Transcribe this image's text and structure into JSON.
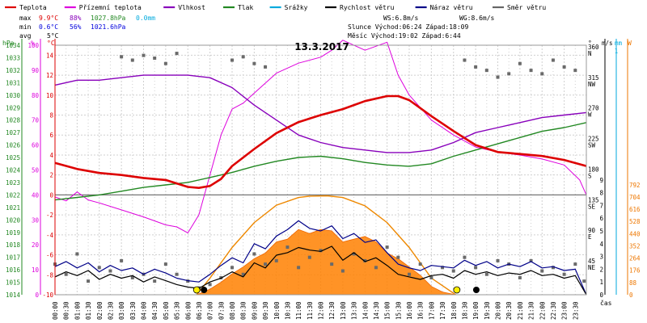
{
  "chart_data": {
    "type": "line",
    "title": "13.3.2017",
    "xlabel": "čas",
    "x_ticks": [
      "00:00",
      "00:30",
      "01:00",
      "01:30",
      "02:00",
      "02:30",
      "03:00",
      "03:30",
      "04:00",
      "04:30",
      "05:00",
      "05:30",
      "06:00",
      "06:30",
      "07:00",
      "07:30",
      "08:00",
      "08:30",
      "09:00",
      "09:30",
      "10:00",
      "10:30",
      "11:00",
      "11:30",
      "12:00",
      "12:30",
      "13:00",
      "13:30",
      "14:00",
      "14:30",
      "15:00",
      "15:30",
      "16:00",
      "16:30",
      "17:00",
      "17:30",
      "18:00",
      "18:30",
      "19:00",
      "19:30",
      "20:00",
      "20:30",
      "21:00",
      "21:30",
      "22:00",
      "22:30",
      "23:00",
      "23:30"
    ],
    "legend": [
      {
        "name": "Teplota",
        "color": "#dd0000"
      },
      {
        "name": "Přízemní teplota",
        "color": "#dd00dd"
      },
      {
        "name": "Vlhkost",
        "color": "#8800bb"
      },
      {
        "name": "Tlak",
        "color": "#228822"
      },
      {
        "name": "Srážky",
        "color": "#00aadd"
      },
      {
        "name": "Rychlost větru",
        "color": "#000000"
      },
      {
        "name": "Náraz větru",
        "color": "#000088"
      },
      {
        "name": "Směr větru",
        "color": "#666666"
      }
    ],
    "stats": {
      "max": {
        "label": "max",
        "temp": "9.9°C",
        "hum": "88%",
        "press": "1027.8hPa",
        "rain": "0.0mm"
      },
      "min": {
        "label": "min",
        "temp": "0.6°C",
        "hum": "56%",
        "press": "1021.6hPa"
      },
      "avg": {
        "label": "avg",
        "temp": "5°C"
      }
    },
    "info": {
      "ws": "WS:6.8m/s",
      "wg": "WG:8.6m/s",
      "sun": "Slunce Východ:06:24  Západ:18:09",
      "moon": "Měsíc  Východ:19:02  Západ:6:44"
    },
    "axes": {
      "hpa": {
        "label": "hPa",
        "min": 1014,
        "max": 1034,
        "ticks": [
          1014,
          1015,
          1016,
          1017,
          1018,
          1019,
          1020,
          1021,
          1022,
          1023,
          1024,
          1025,
          1026,
          1027,
          1028,
          1029,
          1030,
          1031,
          1032,
          1033,
          1034
        ]
      },
      "percent": {
        "label": "%",
        "min": 0,
        "max": 100,
        "ticks": [
          0,
          10,
          20,
          30,
          40,
          50,
          60,
          70,
          80,
          90,
          100
        ]
      },
      "celsius": {
        "label": "°C",
        "min": -10,
        "max": 15,
        "ticks": [
          -10,
          -8,
          -6,
          -4,
          -2,
          0,
          2,
          4,
          6,
          8,
          10,
          12,
          14
        ]
      },
      "direction": {
        "label": "°",
        "ticks": [
          {
            "v": 360,
            "dir": "N"
          },
          {
            "v": 315,
            "dir": "NW"
          },
          {
            "v": 270,
            "dir": "W"
          },
          {
            "v": 225,
            "dir": "SW"
          },
          {
            "v": 180,
            "dir": "S"
          },
          {
            "v": 135,
            "dir": "SE"
          },
          {
            "v": 90,
            "dir": "E"
          },
          {
            "v": 45,
            "dir": "NE"
          }
        ]
      },
      "ms": {
        "label": "m/s",
        "min": 0,
        "max": 9,
        "ticks": [
          0,
          1,
          2,
          3,
          4,
          5,
          6,
          7,
          8,
          9
        ]
      },
      "mm": {
        "label": "mm",
        "top_value": "1"
      },
      "watt": {
        "label": "W",
        "min": 0,
        "max": 792,
        "ticks": [
          0,
          88,
          176,
          264,
          352,
          440,
          528,
          616,
          704,
          792
        ]
      }
    },
    "series": [
      {
        "name": "Teplota",
        "axis": "celsius",
        "color": "#dd0000",
        "x": [
          0,
          1,
          2,
          3,
          4,
          5,
          6,
          6.5,
          7,
          7.5,
          8,
          9,
          10,
          11,
          12,
          13,
          14,
          15,
          15.5,
          16,
          17,
          18,
          19,
          20,
          21,
          22,
          23,
          24
        ],
        "y": [
          3.2,
          2.6,
          2.2,
          2.0,
          1.7,
          1.5,
          0.8,
          0.7,
          0.9,
          1.6,
          2.9,
          4.6,
          6.2,
          7.3,
          8.0,
          8.6,
          9.4,
          9.9,
          9.9,
          9.5,
          7.9,
          6.4,
          5.0,
          4.3,
          4.1,
          3.9,
          3.5,
          2.9
        ]
      },
      {
        "name": "Přízemní teplota",
        "axis": "celsius",
        "color": "#dd00dd",
        "x": [
          0,
          0.5,
          1,
          1.5,
          2,
          3,
          4,
          5,
          5.5,
          6,
          6.5,
          7,
          7.5,
          8,
          8.5,
          9,
          10,
          11,
          12,
          12.5,
          13,
          14,
          15,
          15.5,
          16,
          17,
          18,
          19,
          20,
          21,
          22,
          23,
          23.7,
          24
        ],
        "y": [
          -0.2,
          -0.6,
          0.3,
          -0.5,
          -0.8,
          -1.5,
          -2.2,
          -3.0,
          -3.2,
          -3.8,
          -2.0,
          2.0,
          6.0,
          8.6,
          9.2,
          10.2,
          12.2,
          13.2,
          13.8,
          14.5,
          15.5,
          14.5,
          15.3,
          12.0,
          10.0,
          7.5,
          6.0,
          4.8,
          4.3,
          4.0,
          3.6,
          3.0,
          1.5,
          0.0
        ]
      },
      {
        "name": "Vlhkost",
        "axis": "percent",
        "color": "#8800bb",
        "x": [
          0,
          1,
          2,
          3,
          4,
          5,
          6,
          7,
          8,
          9,
          10,
          11,
          12,
          13,
          14,
          15,
          16,
          17,
          18,
          19,
          20,
          21,
          22,
          23,
          24
        ],
        "y": [
          84,
          86,
          86,
          87,
          88,
          88,
          88,
          87,
          83,
          76,
          70,
          64,
          61,
          59,
          58,
          57,
          57,
          58,
          61,
          65,
          67,
          69,
          71,
          72,
          73
        ]
      },
      {
        "name": "Tlak",
        "axis": "hpa",
        "color": "#228822",
        "x": [
          0,
          1,
          2,
          3,
          4,
          5,
          6,
          7,
          8,
          9,
          10,
          11,
          12,
          13,
          14,
          15,
          16,
          17,
          18,
          19,
          20,
          21,
          22,
          23,
          24
        ],
        "y": [
          1021.6,
          1021.8,
          1022.0,
          1022.3,
          1022.6,
          1022.8,
          1023.0,
          1023.4,
          1023.8,
          1024.3,
          1024.7,
          1025.0,
          1025.1,
          1024.9,
          1024.6,
          1024.4,
          1024.3,
          1024.5,
          1025.1,
          1025.6,
          1026.1,
          1026.6,
          1027.1,
          1027.4,
          1027.8
        ]
      },
      {
        "name": "Rychlost větru",
        "axis": "ms",
        "color": "#000000",
        "x": [
          0,
          0.5,
          1,
          1.5,
          2,
          2.5,
          3,
          3.5,
          4,
          4.5,
          5,
          5.5,
          6,
          6.5,
          7,
          7.5,
          8,
          8.5,
          9,
          9.5,
          10,
          10.5,
          11,
          11.5,
          12,
          12.5,
          13,
          13.5,
          14,
          14.5,
          15,
          15.5,
          16,
          16.5,
          17,
          17.5,
          18,
          18.5,
          19,
          19.5,
          20,
          20.5,
          21,
          21.5,
          22,
          22.5,
          23,
          23.5,
          24
        ],
        "y": [
          1.4,
          1.8,
          1.5,
          1.9,
          1.2,
          1.6,
          1.3,
          1.5,
          1.0,
          1.4,
          1.1,
          0.8,
          0.6,
          0.5,
          1.0,
          1.3,
          1.8,
          1.4,
          2.5,
          2.1,
          3.1,
          3.3,
          3.7,
          3.5,
          3.4,
          3.8,
          2.7,
          3.3,
          2.6,
          2.9,
          2.3,
          1.6,
          1.4,
          1.2,
          1.5,
          1.6,
          1.3,
          1.9,
          1.6,
          1.8,
          1.5,
          1.7,
          1.6,
          1.9,
          1.5,
          1.6,
          1.3,
          1.5,
          0
        ]
      },
      {
        "name": "Náraz větru",
        "axis": "ms",
        "color": "#000088",
        "x": [
          0,
          0.5,
          1,
          1.5,
          2,
          2.5,
          3,
          3.5,
          4,
          4.5,
          5,
          5.5,
          6,
          6.5,
          7,
          7.5,
          8,
          8.5,
          9,
          9.5,
          10,
          10.5,
          11,
          11.5,
          12,
          12.5,
          13,
          13.5,
          14,
          14.5,
          15,
          15.5,
          16,
          16.5,
          17,
          17.5,
          18,
          18.5,
          19,
          19.5,
          20,
          20.5,
          21,
          21.5,
          22,
          22.5,
          23,
          23.5,
          24
        ],
        "y": [
          2.2,
          2.6,
          2.1,
          2.5,
          1.8,
          2.3,
          1.9,
          2.1,
          1.6,
          2.0,
          1.7,
          1.3,
          1.1,
          1.0,
          1.6,
          2.3,
          2.9,
          2.5,
          4.0,
          3.6,
          4.6,
          5.1,
          5.8,
          5.2,
          5.0,
          5.4,
          4.4,
          4.8,
          4.1,
          4.3,
          3.3,
          2.4,
          2.1,
          1.9,
          2.3,
          2.2,
          2.1,
          2.7,
          2.3,
          2.6,
          2.1,
          2.4,
          2.2,
          2.6,
          2.1,
          2.2,
          1.9,
          2.0,
          0
        ]
      },
      {
        "name": "Sluneční záření",
        "axis": "watt",
        "color": "#ee7700",
        "x": [
          6.4,
          7,
          7.5,
          8,
          8.5,
          9,
          9.5,
          10,
          10.5,
          11,
          11.5,
          12,
          12.5,
          13,
          13.5,
          14,
          14.5,
          15,
          15.5,
          16,
          16.5,
          17,
          17.5,
          18.1
        ],
        "y": [
          0,
          40,
          90,
          150,
          200,
          260,
          300,
          380,
          400,
          470,
          440,
          470,
          460,
          380,
          400,
          420,
          380,
          300,
          260,
          200,
          140,
          60,
          20,
          0
        ]
      },
      {
        "name": "Teoretické záření",
        "axis": "watt",
        "color": "#ee8800",
        "x": [
          6.4,
          7,
          8,
          9,
          10,
          11,
          11.5,
          12.3,
          13,
          14,
          15,
          16,
          17,
          18.1
        ],
        "y": [
          0,
          120,
          340,
          520,
          645,
          700,
          710,
          712,
          700,
          640,
          520,
          340,
          120,
          0
        ]
      }
    ],
    "wind_direction": {
      "axis": "direction",
      "x": [
        0,
        0.5,
        1,
        1.5,
        2,
        2.5,
        3,
        3.5,
        4,
        4.5,
        5,
        5.5,
        6,
        6.5,
        7,
        7.5,
        8,
        8.5,
        9,
        9.5,
        10,
        10.5,
        11,
        11.5,
        12,
        12.5,
        13,
        13.5,
        14,
        14.5,
        15,
        15.5,
        16,
        16.5,
        17,
        17.5,
        18,
        18.5,
        19,
        19.5,
        20,
        20.5,
        21,
        21.5,
        22,
        22.5,
        23,
        23.5,
        23.9
      ],
      "y": [
        45,
        30,
        60,
        20,
        40,
        35,
        50,
        25,
        30,
        20,
        45,
        30,
        20,
        10,
        15,
        25,
        40,
        30,
        60,
        45,
        50,
        70,
        40,
        55,
        65,
        45,
        35,
        60,
        50,
        40,
        70,
        55,
        30,
        45,
        25,
        40,
        35,
        55,
        40,
        30,
        50,
        45,
        25,
        50,
        35,
        40,
        30,
        45,
        20
      ],
      "upper_x": [
        3,
        3.5,
        4,
        4.5,
        5,
        5.5,
        8,
        8.5,
        9,
        9.5,
        18.5,
        19,
        19.5,
        20,
        20.5,
        21,
        21.5,
        22,
        22.5,
        23,
        23.5
      ],
      "upper_y": [
        350,
        345,
        352,
        348,
        340,
        355,
        345,
        350,
        340,
        335,
        345,
        335,
        330,
        320,
        325,
        340,
        330,
        325,
        345,
        335,
        330
      ]
    },
    "markers": {
      "sunrise_x": 6.4,
      "sunset_x": 18.15,
      "moonset_x": 6.73,
      "moonrise_x": 19.03
    }
  }
}
